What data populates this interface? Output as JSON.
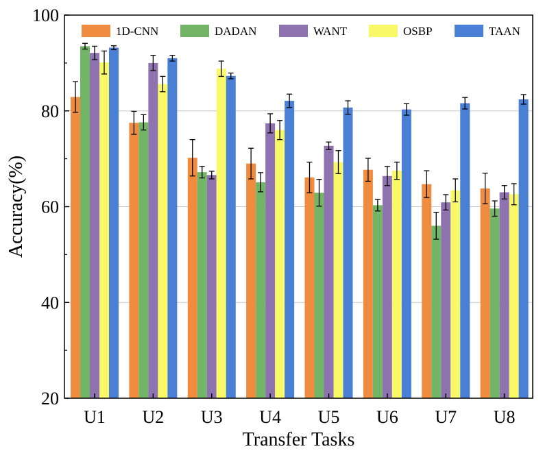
{
  "chart_data": {
    "type": "bar",
    "title": "",
    "xlabel": "Transfer Tasks",
    "ylabel": "Accuracy(%)",
    "ylim": [
      20,
      100
    ],
    "yticks": [
      20,
      40,
      60,
      80,
      100
    ],
    "grid": true,
    "legend_position": "top",
    "categories": [
      "U1",
      "U2",
      "U3",
      "U4",
      "U5",
      "U6",
      "U7",
      "U8"
    ],
    "series": [
      {
        "name": "1D-CNN",
        "color": "#EF8C3F",
        "values": [
          82.9,
          77.5,
          70.2,
          69.0,
          66.1,
          67.7,
          64.7,
          63.8
        ],
        "errors": [
          3.2,
          2.4,
          3.8,
          3.2,
          3.2,
          2.4,
          2.8,
          3.2
        ]
      },
      {
        "name": "DADAN",
        "color": "#73B566",
        "values": [
          93.5,
          77.6,
          67.2,
          65.1,
          62.9,
          60.3,
          56.0,
          59.6
        ],
        "errors": [
          0.6,
          1.6,
          1.2,
          2.0,
          2.8,
          1.2,
          2.8,
          1.6
        ]
      },
      {
        "name": "WANT",
        "color": "#8E73B0",
        "values": [
          92.1,
          90.0,
          66.6,
          77.4,
          72.7,
          66.4,
          60.9,
          63.0
        ],
        "errors": [
          1.4,
          1.6,
          0.8,
          2.0,
          0.8,
          2.0,
          1.6,
          1.4
        ]
      },
      {
        "name": "OSBP",
        "color": "#F8F868",
        "values": [
          90.1,
          85.6,
          88.8,
          76.0,
          69.3,
          67.5,
          63.4,
          62.6
        ],
        "errors": [
          2.4,
          1.6,
          1.6,
          2.0,
          2.4,
          1.8,
          2.4,
          2.2
        ]
      },
      {
        "name": "TAAN",
        "color": "#4A7FD6",
        "values": [
          93.2,
          91.0,
          87.3,
          82.1,
          80.7,
          80.3,
          81.6,
          82.4
        ],
        "errors": [
          0.4,
          0.6,
          0.6,
          1.4,
          1.4,
          1.2,
          1.2,
          1.0
        ]
      }
    ]
  }
}
